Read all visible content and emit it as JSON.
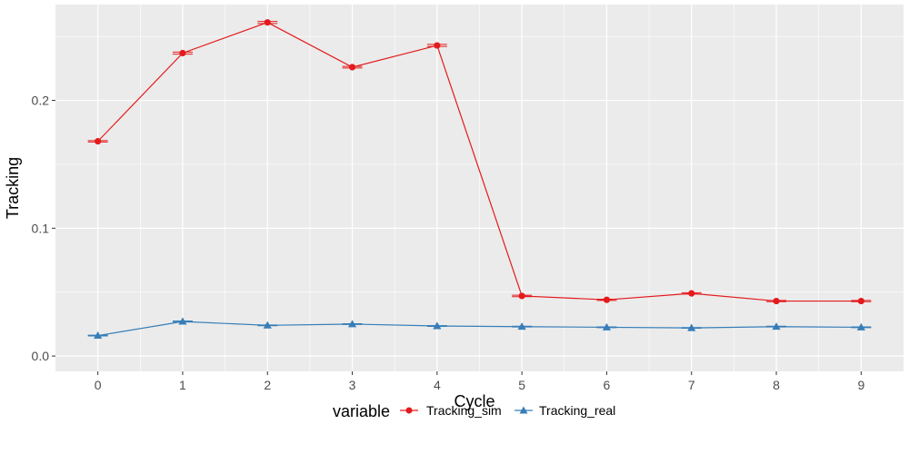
{
  "chart_data": {
    "type": "line",
    "xlabel": "Cycle",
    "ylabel": "Tracking",
    "x": [
      0,
      1,
      2,
      3,
      4,
      5,
      6,
      7,
      8,
      9
    ],
    "xlim": [
      -0.5,
      9.5
    ],
    "ylim": [
      -0.012,
      0.275
    ],
    "x_ticks": [
      "0",
      "1",
      "2",
      "3",
      "4",
      "5",
      "6",
      "7",
      "8",
      "9"
    ],
    "y_ticks": [
      0.0,
      0.1,
      0.2
    ],
    "y_tick_labels": [
      "0.0",
      "0.1",
      "0.2"
    ],
    "grid": true,
    "panel_background": "#ebebeb",
    "legend": {
      "title": "variable",
      "position": "bottom"
    },
    "series": [
      {
        "name": "Tracking_sim",
        "color": "#e41a1c",
        "marker": "circle",
        "values": [
          0.168,
          0.237,
          0.261,
          0.226,
          0.243,
          0.047,
          0.044,
          0.049,
          0.043,
          0.043
        ],
        "errors": [
          0.0005,
          0.0008,
          0.0008,
          0.0006,
          0.0008,
          0.0006,
          0.0005,
          0.0005,
          0.0005,
          0.0005
        ]
      },
      {
        "name": "Tracking_real",
        "color": "#377eb8",
        "marker": "triangle",
        "values": [
          0.016,
          0.027,
          0.024,
          0.025,
          0.0235,
          0.023,
          0.0225,
          0.022,
          0.023,
          0.0225
        ],
        "errors": [
          0.0003,
          0.0004,
          0.0003,
          0.0003,
          0.0003,
          0.0003,
          0.0003,
          0.0003,
          0.0003,
          0.0003
        ]
      }
    ]
  }
}
